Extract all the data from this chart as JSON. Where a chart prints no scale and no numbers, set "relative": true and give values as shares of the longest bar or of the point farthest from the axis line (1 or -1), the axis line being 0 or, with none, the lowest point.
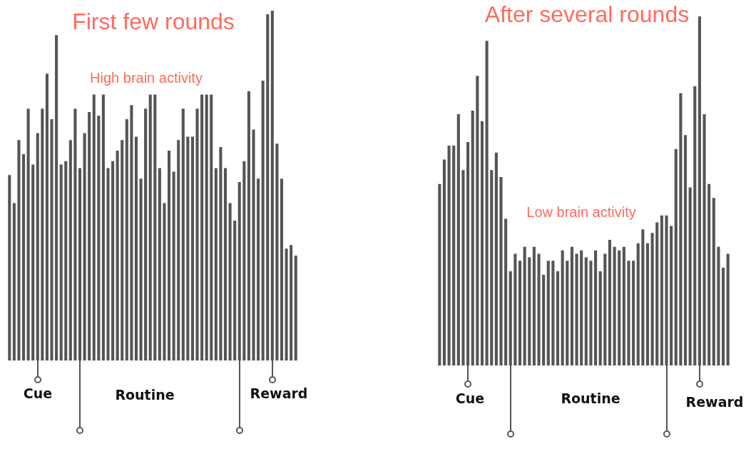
{
  "chart_data": [
    {
      "type": "bar",
      "title": "First few rounds",
      "relative": true,
      "color": "#555555",
      "categories": [
        null,
        null,
        null,
        null,
        null,
        null,
        null,
        null,
        null,
        null,
        null,
        null,
        null,
        null,
        null,
        null,
        null,
        null,
        null,
        null,
        null,
        null,
        null,
        null,
        null,
        null,
        null,
        null,
        null,
        null,
        null,
        null,
        null,
        null,
        null,
        null,
        null,
        null,
        null,
        null,
        null,
        null,
        null,
        null,
        null,
        null,
        null,
        null,
        null,
        null,
        null,
        null,
        null,
        null,
        null,
        null,
        null,
        null,
        null,
        null,
        null,
        null
      ],
      "values": [
        0.53,
        0.45,
        0.63,
        0.59,
        0.72,
        0.56,
        0.65,
        0.72,
        0.82,
        0.69,
        0.93,
        0.56,
        0.57,
        0.63,
        0.72,
        0.55,
        0.65,
        0.71,
        0.76,
        0.7,
        0.76,
        0.55,
        0.57,
        0.6,
        0.63,
        0.69,
        0.73,
        0.64,
        0.52,
        0.72,
        0.76,
        0.76,
        0.55,
        0.45,
        0.6,
        0.54,
        0.63,
        0.72,
        0.64,
        0.64,
        0.72,
        0.76,
        0.76,
        0.76,
        0.55,
        0.61,
        0.55,
        0.45,
        0.4,
        0.51,
        0.57,
        0.77,
        0.66,
        0.52,
        0.8,
        0.99,
        1,
        0.62,
        0.52,
        0.32,
        0.33,
        0.3
      ],
      "annotations": [
        "High brain activity",
        "Cue",
        "Routine",
        "Reward"
      ]
    },
    {
      "type": "bar",
      "title": "After several rounds",
      "relative": true,
      "color": "#555555",
      "categories": [
        null,
        null,
        null,
        null,
        null,
        null,
        null,
        null,
        null,
        null,
        null,
        null,
        null,
        null,
        null,
        null,
        null,
        null,
        null,
        null,
        null,
        null,
        null,
        null,
        null,
        null,
        null,
        null,
        null,
        null,
        null,
        null,
        null,
        null,
        null,
        null,
        null,
        null,
        null,
        null,
        null,
        null,
        null,
        null,
        null,
        null,
        null,
        null,
        null,
        null,
        null,
        null,
        null,
        null,
        null,
        null,
        null,
        null,
        null,
        null,
        null,
        null
      ],
      "values": [
        0.52,
        0.59,
        0.63,
        0.63,
        0.72,
        0.56,
        0.64,
        0.73,
        0.83,
        0.7,
        0.93,
        0.56,
        0.61,
        0.54,
        0.42,
        0.27,
        0.32,
        0.3,
        0.34,
        0.31,
        0.34,
        0.32,
        0.26,
        0.3,
        0.3,
        0.27,
        0.33,
        0.3,
        0.34,
        0.32,
        0.33,
        0.31,
        0.3,
        0.33,
        0.27,
        0.32,
        0.36,
        0.34,
        0.33,
        0.34,
        0.3,
        0.3,
        0.35,
        0.39,
        0.35,
        0.38,
        0.41,
        0.43,
        0.43,
        0.4,
        0.62,
        0.78,
        0.66,
        0.51,
        0.8,
        1,
        0.72,
        0.52,
        0.48,
        0.34,
        0.28,
        0.32
      ],
      "annotations": [
        "Low brain activity",
        "Cue",
        "Routine",
        "Reward"
      ]
    }
  ]
}
